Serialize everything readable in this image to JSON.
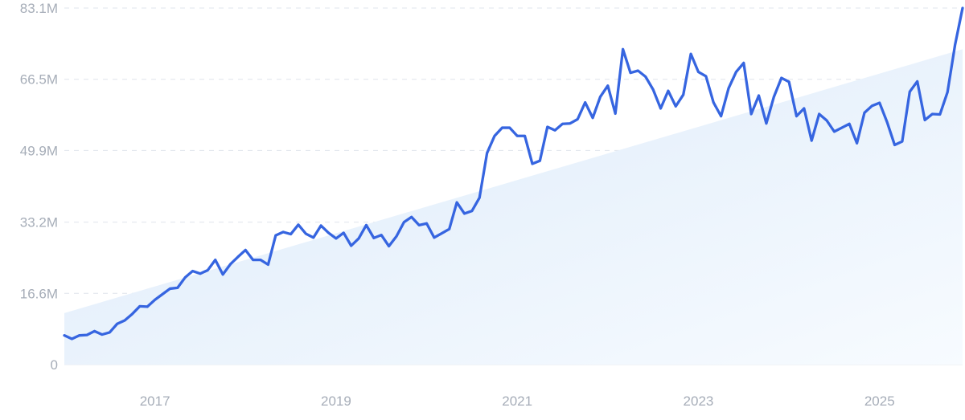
{
  "chart_data": {
    "type": "line",
    "title": "",
    "xlabel": "",
    "ylabel": "",
    "ylim": [
      0,
      83.1
    ],
    "y_unit": "M",
    "grid": true,
    "x_range": [
      "2016-01",
      "2025-12"
    ],
    "y_ticks": [
      0,
      16.6,
      33.2,
      49.9,
      66.5,
      83.1
    ],
    "y_tick_labels": [
      "0",
      "16.6M",
      "33.2M",
      "49.9M",
      "66.5M",
      "83.1M"
    ],
    "x_ticks": [
      "2017-01",
      "2019-01",
      "2021-01",
      "2023-01",
      "2025-01"
    ],
    "x_tick_labels": [
      "2017",
      "2019",
      "2021",
      "2023",
      "2025"
    ],
    "trend_line": {
      "x": [
        "2016-01",
        "2025-12"
      ],
      "values": [
        12.0,
        73.5
      ]
    },
    "series": [
      {
        "x": [
          "2016-01",
          "2016-02",
          "2016-03",
          "2016-04",
          "2016-05",
          "2016-06",
          "2016-07",
          "2016-08",
          "2016-09",
          "2016-10",
          "2016-11",
          "2016-12",
          "2017-01",
          "2017-02",
          "2017-03",
          "2017-04",
          "2017-05",
          "2017-06",
          "2017-07",
          "2017-08",
          "2017-09",
          "2017-10",
          "2017-11",
          "2017-12",
          "2018-01",
          "2018-02",
          "2018-03",
          "2018-04",
          "2018-05",
          "2018-06",
          "2018-07",
          "2018-08",
          "2018-09",
          "2018-10",
          "2018-11",
          "2018-12",
          "2019-01",
          "2019-02",
          "2019-03",
          "2019-04",
          "2019-05",
          "2019-06",
          "2019-07",
          "2019-08",
          "2019-09",
          "2019-10",
          "2019-11",
          "2019-12",
          "2020-01",
          "2020-02",
          "2020-03",
          "2020-04",
          "2020-05",
          "2020-06",
          "2020-07",
          "2020-08",
          "2020-09",
          "2020-10",
          "2020-11",
          "2020-12",
          "2021-01",
          "2021-02",
          "2021-03",
          "2021-04",
          "2021-05",
          "2021-06",
          "2021-07",
          "2021-08",
          "2021-09",
          "2021-10",
          "2021-11",
          "2021-12",
          "2022-01",
          "2022-02",
          "2022-03",
          "2022-04",
          "2022-05",
          "2022-06",
          "2022-07",
          "2022-08",
          "2022-09",
          "2022-10",
          "2022-11",
          "2022-12",
          "2023-01",
          "2023-02",
          "2023-03",
          "2023-04",
          "2023-05",
          "2023-06",
          "2023-07",
          "2023-08",
          "2023-09",
          "2023-10",
          "2023-11",
          "2023-12",
          "2024-01",
          "2024-02",
          "2024-03",
          "2024-04",
          "2024-05",
          "2024-06",
          "2024-07",
          "2024-08",
          "2024-09",
          "2024-10",
          "2024-11",
          "2024-12",
          "2025-01",
          "2025-02",
          "2025-03",
          "2025-04",
          "2025-05",
          "2025-06",
          "2025-07",
          "2025-08",
          "2025-09",
          "2025-10",
          "2025-11",
          "2025-12"
        ],
        "values": [
          6.8,
          6.0,
          6.8,
          6.9,
          7.8,
          7.0,
          7.5,
          9.5,
          10.3,
          11.8,
          13.6,
          13.5,
          15.1,
          16.4,
          17.7,
          17.9,
          20.3,
          21.8,
          21.2,
          22.0,
          24.4,
          21.0,
          23.4,
          25.1,
          26.7,
          24.4,
          24.4,
          23.3,
          30.1,
          30.9,
          30.4,
          32.6,
          30.5,
          29.6,
          32.4,
          30.7,
          29.4,
          30.7,
          27.7,
          29.4,
          32.5,
          29.5,
          30.2,
          27.6,
          29.9,
          33.2,
          34.4,
          32.5,
          32.9,
          29.6,
          30.6,
          31.6,
          37.8,
          35.2,
          35.8,
          38.9,
          49.3,
          53.3,
          55.2,
          55.2,
          53.3,
          53.3,
          46.8,
          47.5,
          55.4,
          54.6,
          56.1,
          56.2,
          57.2,
          61.1,
          57.5,
          62.4,
          65.0,
          58.5,
          73.5,
          68.0,
          68.5,
          67.1,
          64.1,
          59.7,
          63.8,
          60.2,
          62.9,
          72.4,
          68.2,
          67.2,
          61.1,
          57.9,
          64.4,
          68.2,
          70.3,
          58.4,
          62.7,
          56.2,
          62.4,
          66.8,
          65.9,
          57.9,
          59.7,
          52.2,
          58.4,
          56.9,
          54.3,
          55.2,
          56.1,
          51.6,
          58.7,
          60.3,
          61.0,
          56.5,
          51.2,
          52.0,
          63.6,
          66.0,
          57.0,
          58.4,
          58.3,
          63.5,
          74.5,
          83.1
        ]
      }
    ]
  }
}
